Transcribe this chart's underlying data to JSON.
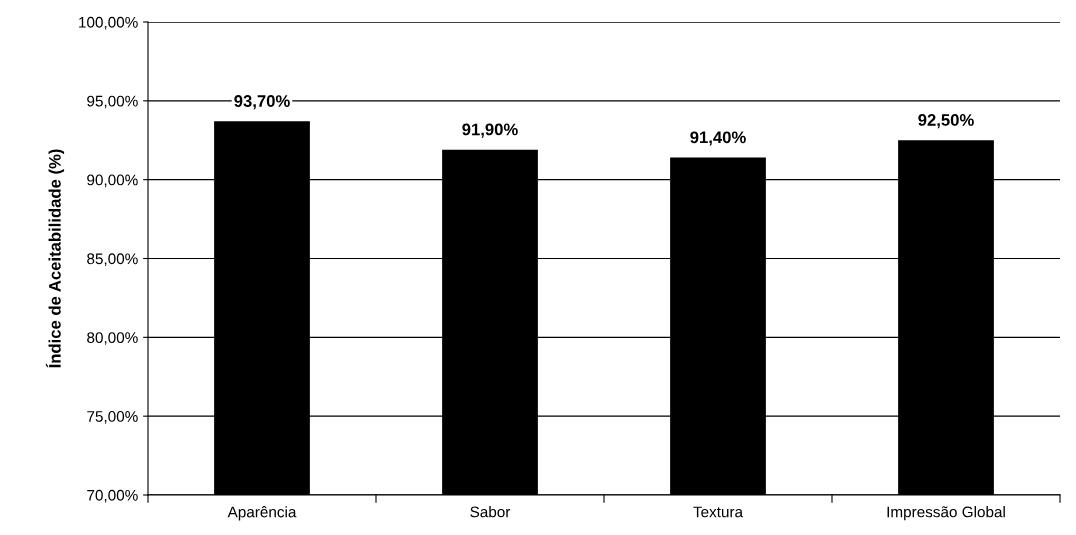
{
  "chart_data": {
    "type": "bar",
    "ylabel": "Índice de Aceitabilidade (%)",
    "categories": [
      "Aparência",
      "Sabor",
      "Textura",
      "Impressão Global"
    ],
    "values": [
      93.7,
      91.9,
      91.4,
      92.5
    ],
    "value_labels": [
      "93,70%",
      "91,90%",
      "91,40%",
      "92,50%"
    ],
    "color": "#000000",
    "ylim": [
      70,
      100
    ],
    "yticks": [
      {
        "value": 70,
        "label": "70,00%"
      },
      {
        "value": 75,
        "label": "75,00%"
      },
      {
        "value": 80,
        "label": "80,00%"
      },
      {
        "value": 85,
        "label": "85,00%"
      },
      {
        "value": 90,
        "label": "90,00%"
      },
      {
        "value": 95,
        "label": "95,00%"
      },
      {
        "value": 100,
        "label": "100,00%"
      }
    ],
    "grid": "y"
  }
}
